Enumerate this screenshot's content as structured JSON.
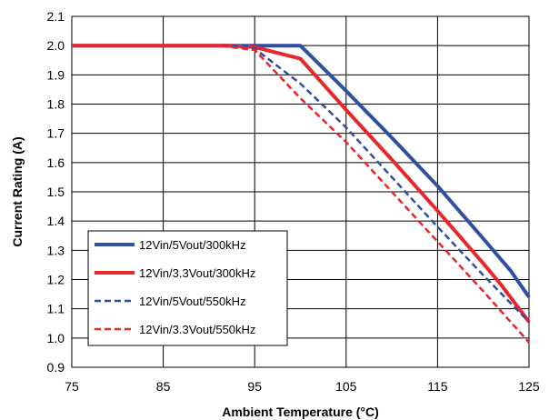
{
  "chart_data": {
    "type": "line",
    "title": "",
    "xlabel": "Ambient Temperature (°C)",
    "ylabel": "Current Rating (A)",
    "xlim": [
      75,
      125
    ],
    "ylim": [
      0.9,
      2.1
    ],
    "x_ticks": [
      "75",
      "85",
      "95",
      "105",
      "115",
      "125"
    ],
    "y_ticks": [
      "0.9",
      "1.0",
      "1.1",
      "1.2",
      "1.3",
      "1.4",
      "1.5",
      "1.6",
      "1.7",
      "1.8",
      "1.9",
      "2.0",
      "2.1"
    ],
    "grid": true,
    "legend_position": "bottom-left",
    "series": [
      {
        "name": "12Vin/5Vout/300kHz",
        "color": "#2E4FA3",
        "dash": "solid",
        "x": [
          75,
          100,
          105,
          110,
          115,
          120,
          123,
          125
        ],
        "y": [
          2.0,
          2.0,
          1.845,
          1.685,
          1.52,
          1.34,
          1.23,
          1.14
        ]
      },
      {
        "name": "12Vin/3.3Vout/300kHz",
        "color": "#E8262B",
        "dash": "solid",
        "x": [
          75,
          92,
          95,
          100,
          105,
          110,
          115,
          120,
          122,
          125
        ],
        "y": [
          2.0,
          2.0,
          1.995,
          1.955,
          1.78,
          1.61,
          1.435,
          1.255,
          1.18,
          1.055
        ]
      },
      {
        "name": "12Vin/5Vout/550kHz",
        "color": "#2E4FA3",
        "dash": "dashed",
        "x": [
          75,
          94,
          95,
          100,
          105,
          110,
          115,
          120,
          125
        ],
        "y": [
          2.0,
          2.0,
          1.99,
          1.87,
          1.72,
          1.55,
          1.38,
          1.215,
          1.055
        ]
      },
      {
        "name": "12Vin/3.3Vout/550kHz",
        "color": "#E8262B",
        "dash": "dashed",
        "x": [
          75,
          91,
          95,
          100,
          105,
          110,
          115,
          120,
          125
        ],
        "y": [
          2.0,
          2.0,
          1.985,
          1.82,
          1.67,
          1.5,
          1.33,
          1.16,
          0.985
        ]
      }
    ]
  }
}
